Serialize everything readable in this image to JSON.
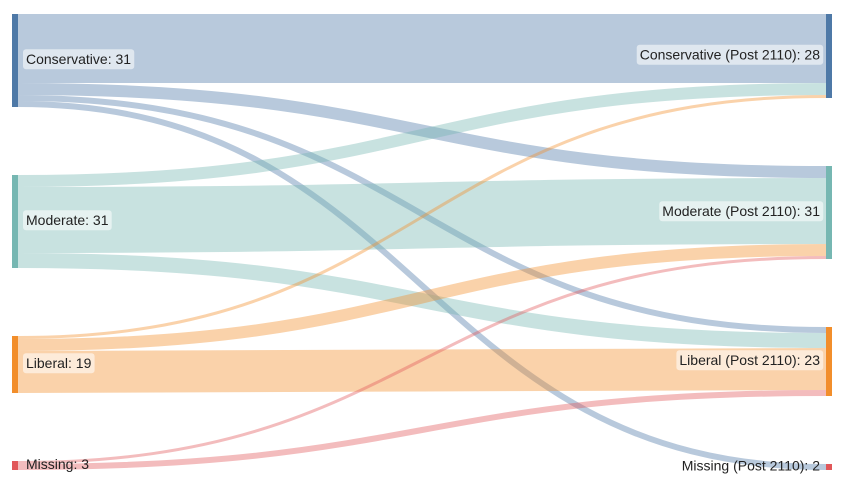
{
  "chart_data": {
    "type": "sankey",
    "sources": [
      {
        "label": "Conservative: 31",
        "value": 31,
        "color": "#4e79a7"
      },
      {
        "label": "Moderate: 31",
        "value": 31,
        "color": "#76b7b2"
      },
      {
        "label": "Liberal: 19",
        "value": 19,
        "color": "#f28e2b"
      },
      {
        "label": "Missing: 3",
        "value": 3,
        "color": "#e15759"
      }
    ],
    "targets": [
      {
        "label": "Conservative (Post 2110): 28",
        "value": 28,
        "color": "#4e79a7"
      },
      {
        "label": "Moderate (Post 2110): 31",
        "value": 31,
        "color": "#76b7b2"
      },
      {
        "label": "Liberal (Post 2110): 23",
        "value": 23,
        "color": "#f28e2b"
      },
      {
        "label": "Missing (Post 2110): 2",
        "value": 2,
        "color": "#e15759"
      }
    ],
    "links": [
      {
        "source": 0,
        "target": 0,
        "value": 23
      },
      {
        "source": 0,
        "target": 1,
        "value": 4
      },
      {
        "source": 0,
        "target": 2,
        "value": 2
      },
      {
        "source": 0,
        "target": 3,
        "value": 2
      },
      {
        "source": 1,
        "target": 0,
        "value": 4
      },
      {
        "source": 1,
        "target": 1,
        "value": 22
      },
      {
        "source": 1,
        "target": 2,
        "value": 5
      },
      {
        "source": 2,
        "target": 0,
        "value": 1
      },
      {
        "source": 2,
        "target": 1,
        "value": 4
      },
      {
        "source": 2,
        "target": 2,
        "value": 14
      },
      {
        "source": 3,
        "target": 1,
        "value": 1
      },
      {
        "source": 3,
        "target": 2,
        "value": 2
      }
    ]
  }
}
